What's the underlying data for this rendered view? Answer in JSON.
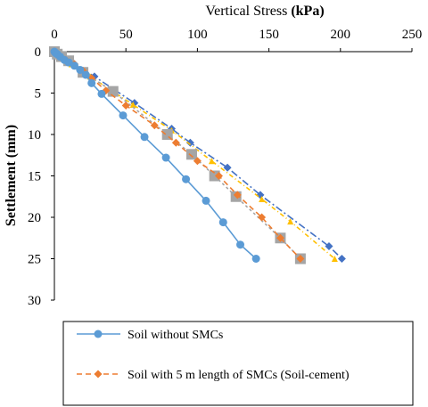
{
  "chart_data": {
    "type": "line",
    "xlabel_plain": "Vertical Stress ",
    "xlabel_bold": "(kPa)",
    "ylabel": "Settlement (mm)",
    "xlim": [
      0,
      250
    ],
    "ylim": [
      0,
      30
    ],
    "y_inverted": true,
    "x_axis_position": "top",
    "xticks": [
      0,
      50,
      100,
      150,
      200,
      250
    ],
    "yticks": [
      0,
      5,
      10,
      15,
      20,
      25,
      30
    ],
    "grid": false,
    "legend_placement": "bottom",
    "series": [
      {
        "name": "Soil without SMCs",
        "color": "#5b9bd5",
        "marker": "circle",
        "dash": "solid",
        "in_legend": true,
        "points": [
          [
            0,
            0
          ],
          [
            0.5,
            0.1
          ],
          [
            1,
            0.2
          ],
          [
            2,
            0.3
          ],
          [
            4,
            0.6
          ],
          [
            7,
            1.0
          ],
          [
            10,
            1.3
          ],
          [
            14,
            1.7
          ],
          [
            18,
            2.2
          ],
          [
            22,
            2.8
          ],
          [
            26,
            3.8
          ],
          [
            33,
            5.1
          ],
          [
            48,
            7.7
          ],
          [
            63,
            10.3
          ],
          [
            78,
            12.8
          ],
          [
            92,
            15.4
          ],
          [
            106,
            18.0
          ],
          [
            118,
            20.6
          ],
          [
            130,
            23.3
          ],
          [
            141,
            25.0
          ]
        ]
      },
      {
        "name": "Soil with 5 m length of SMCs (Soil-cement)",
        "color": "#ed7d31",
        "marker": "diamond",
        "dash": "6,4",
        "in_legend": true,
        "points": [
          [
            0,
            0
          ],
          [
            1,
            0.1
          ],
          [
            2,
            0.3
          ],
          [
            4,
            0.6
          ],
          [
            8,
            1.0
          ],
          [
            14,
            1.5
          ],
          [
            20,
            2.3
          ],
          [
            26,
            3.2
          ],
          [
            36,
            4.7
          ],
          [
            50,
            6.5
          ],
          [
            70,
            8.9
          ],
          [
            85,
            11.0
          ],
          [
            100,
            13.2
          ],
          [
            115,
            15.0
          ],
          [
            128,
            17.3
          ],
          [
            145,
            20.0
          ],
          [
            158,
            22.5
          ],
          [
            172,
            25.0
          ]
        ]
      },
      {
        "name": "",
        "color": "#a5a5a5",
        "marker": "square",
        "dash": "3,3",
        "in_legend": false,
        "points": [
          [
            0,
            0
          ],
          [
            2,
            0.3
          ],
          [
            5,
            0.6
          ],
          [
            10,
            1.1
          ],
          [
            20,
            2.5
          ],
          [
            41,
            4.8
          ],
          [
            79,
            10.0
          ],
          [
            96,
            12.4
          ],
          [
            112,
            15.0
          ],
          [
            127,
            17.5
          ],
          [
            158,
            22.5
          ],
          [
            172,
            25.0
          ]
        ]
      },
      {
        "name": "",
        "color": "#ffc000",
        "marker": "triangle",
        "dash": "5,3,1,3",
        "in_legend": false,
        "points": [
          [
            0,
            0
          ],
          [
            2,
            0.3
          ],
          [
            5,
            0.7
          ],
          [
            12,
            1.5
          ],
          [
            25,
            3.0
          ],
          [
            55,
            6.4
          ],
          [
            82,
            9.5
          ],
          [
            110,
            13.2
          ],
          [
            145,
            17.8
          ],
          [
            165,
            20.5
          ],
          [
            196,
            25.0
          ]
        ]
      },
      {
        "name": "",
        "color": "#4472c4",
        "marker": "diamond",
        "dash": "8,3,2,3",
        "in_legend": false,
        "points": [
          [
            0,
            0
          ],
          [
            2,
            0.3
          ],
          [
            6,
            0.7
          ],
          [
            14,
            1.5
          ],
          [
            28,
            3.0
          ],
          [
            56,
            6.2
          ],
          [
            82,
            9.3
          ],
          [
            95,
            11.0
          ],
          [
            121,
            14.0
          ],
          [
            144,
            17.3
          ],
          [
            192,
            23.5
          ],
          [
            201,
            25.0
          ]
        ]
      }
    ]
  }
}
